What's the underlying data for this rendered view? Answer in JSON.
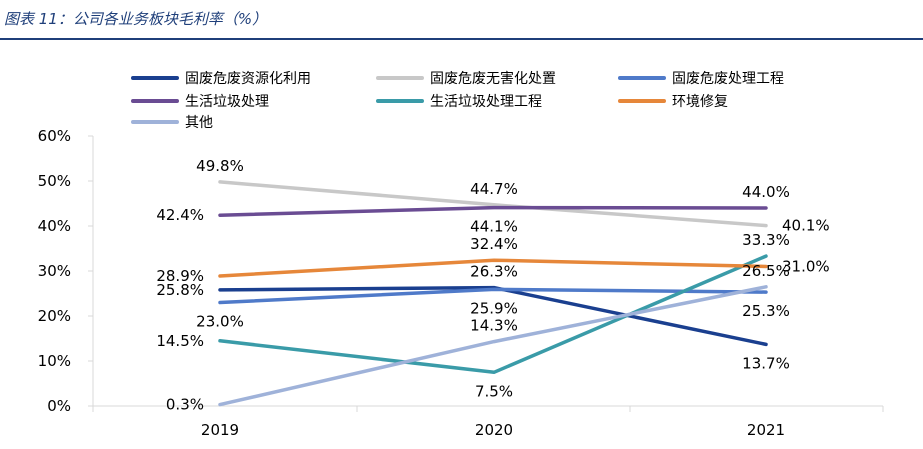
{
  "header": {
    "title": "图表 11：公司各业务板块毛利率（%）"
  },
  "colors": {
    "rule": "#1f3f7a",
    "axis": "#d9d9d9",
    "text": "#000000"
  },
  "chart_data": {
    "type": "line",
    "title": "公司各业务板块毛利率（%）",
    "xlabel": "",
    "ylabel": "",
    "categories": [
      "2019",
      "2020",
      "2021"
    ],
    "ylim": [
      0,
      60
    ],
    "yticks": [
      0,
      10,
      20,
      30,
      40,
      50,
      60
    ],
    "ytick_labels": [
      "0%",
      "10%",
      "20%",
      "30%",
      "40%",
      "50%",
      "60%"
    ],
    "grid": false,
    "legend_position": "top",
    "series": [
      {
        "name": "固废危废资源化利用",
        "color": "#1a3f8f",
        "values": [
          25.8,
          26.3,
          13.7
        ],
        "labels": [
          "25.8%",
          "26.3%",
          "13.7%"
        ],
        "label_pos": [
          "left",
          "above",
          "below"
        ]
      },
      {
        "name": "固废危废无害化处置",
        "color": "#c8c8c8",
        "values": [
          49.8,
          44.7,
          40.1
        ],
        "labels": [
          "49.8%",
          "44.7%",
          "40.1%"
        ],
        "label_pos": [
          "above",
          "above",
          "right"
        ]
      },
      {
        "name": "固废危废处理工程",
        "color": "#4f7ac9",
        "values": [
          23.0,
          25.9,
          25.3
        ],
        "labels": [
          "23.0%",
          "25.9%",
          "25.3%"
        ],
        "label_pos": [
          "below",
          "below",
          "below"
        ]
      },
      {
        "name": "生活垃圾处理",
        "color": "#6a4c93",
        "values": [
          42.4,
          44.1,
          44.0
        ],
        "labels": [
          "42.4%",
          "44.1%",
          "44.0%"
        ],
        "label_pos": [
          "left",
          "below",
          "above"
        ]
      },
      {
        "name": "生活垃圾处理工程",
        "color": "#3a9ba8",
        "values": [
          14.5,
          7.5,
          33.3
        ],
        "labels": [
          "14.5%",
          "7.5%",
          "33.3%"
        ],
        "label_pos": [
          "left",
          "below",
          "above"
        ]
      },
      {
        "name": "环境修复",
        "color": "#e6873a",
        "values": [
          28.9,
          32.4,
          31.0
        ],
        "labels": [
          "28.9%",
          "32.4%",
          "31.0%"
        ],
        "label_pos": [
          "left",
          "above",
          "right"
        ]
      },
      {
        "name": "其他",
        "color": "#9fb2d9",
        "values": [
          0.3,
          14.3,
          26.5
        ],
        "labels": [
          "0.3%",
          "14.3%",
          "26.5%"
        ],
        "label_pos": [
          "left",
          "above",
          "above"
        ]
      }
    ]
  }
}
